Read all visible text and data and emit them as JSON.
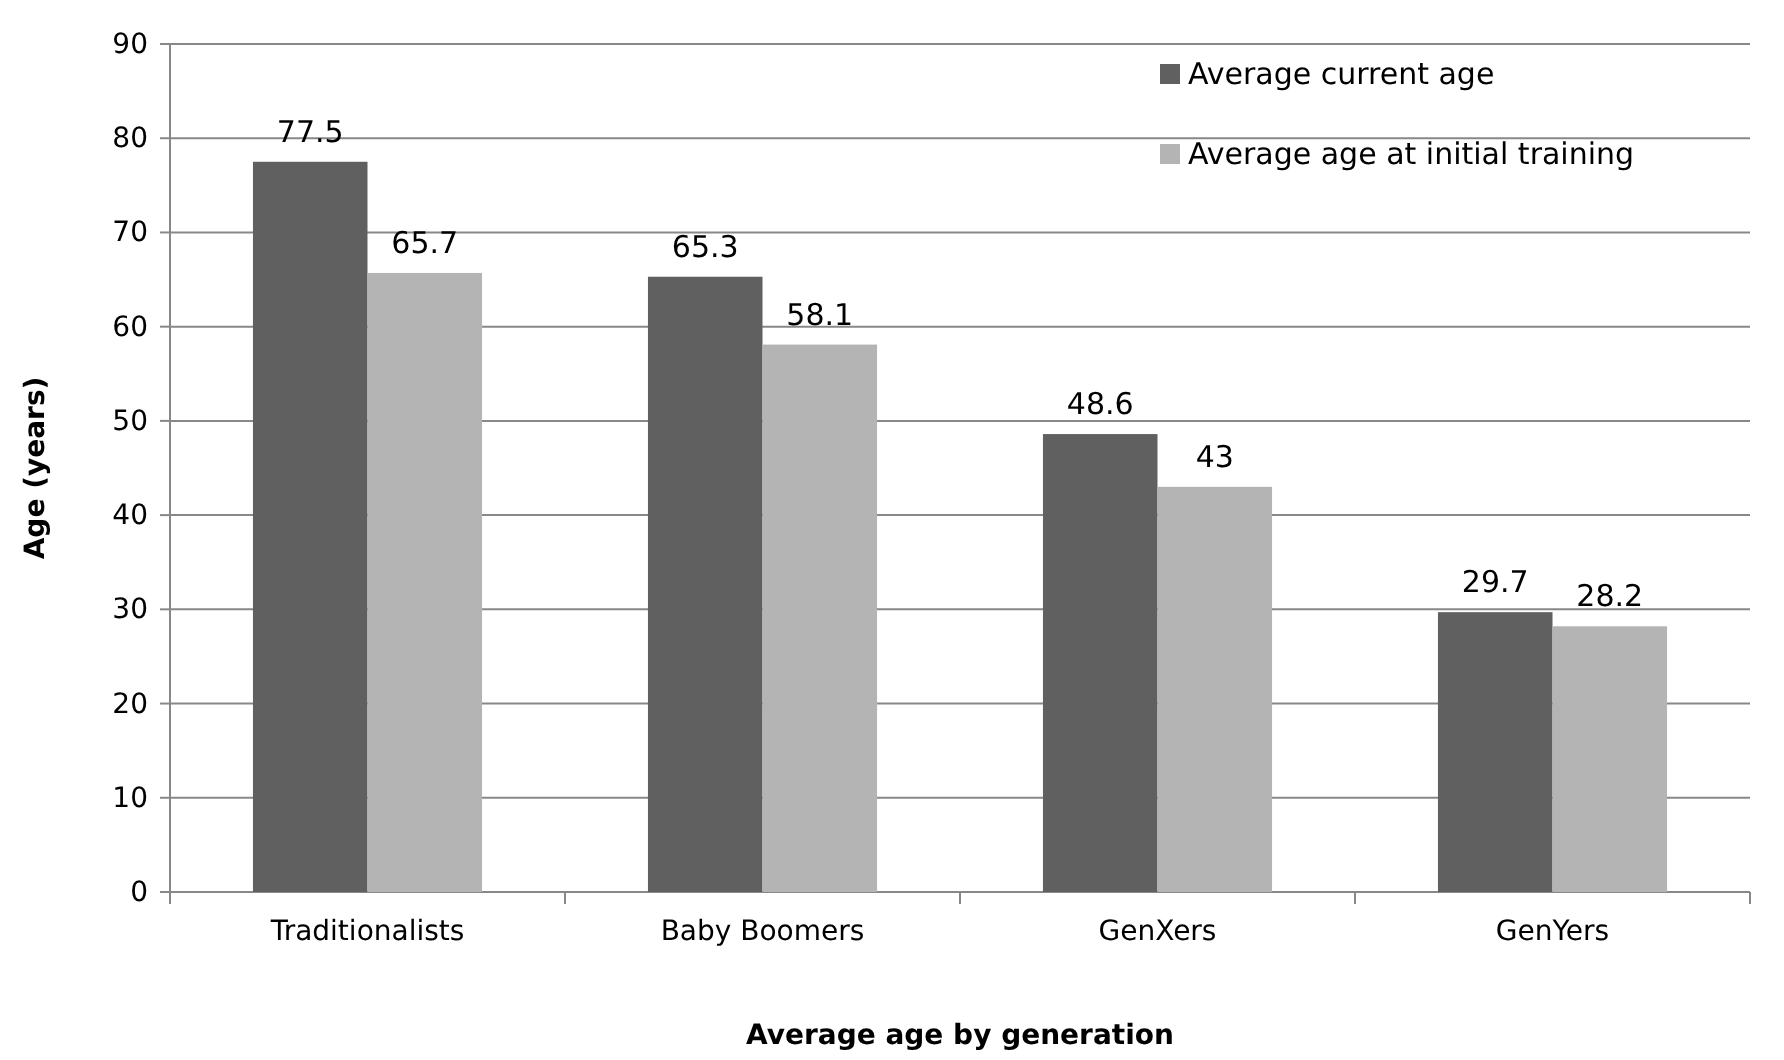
{
  "chart_data": {
    "type": "bar",
    "xlabel": "Average age by generation",
    "ylabel": "Age (years)",
    "categories": [
      "Traditionalists",
      "Baby Boomers",
      "GenXers",
      "GenYers"
    ],
    "series": [
      {
        "name": "Average current age",
        "color": "#606060",
        "values": [
          77.5,
          65.3,
          48.6,
          29.7
        ]
      },
      {
        "name": "Average age at initial training",
        "color": "#b4b4b4",
        "values": [
          65.7,
          58.1,
          43,
          28.2
        ]
      }
    ],
    "ylim": [
      0,
      90
    ],
    "yticks": [
      0,
      10,
      20,
      30,
      40,
      50,
      60,
      70,
      80,
      90
    ],
    "grid": "y",
    "legend": "top right",
    "data_labels": true
  }
}
